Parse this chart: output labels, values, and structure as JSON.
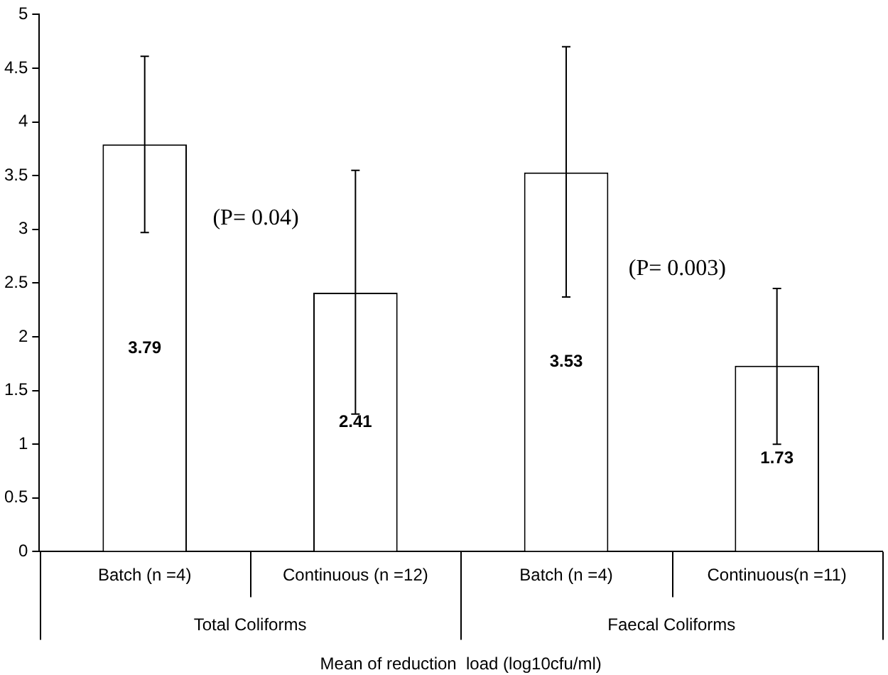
{
  "chart_data": {
    "type": "bar",
    "xlabel": "Mean of reduction  load (log10cfu/ml)",
    "categories": [
      "Batch (n =4)",
      "Continuous (n =12)",
      "Batch (n =4)",
      "Continuous(n =11)"
    ],
    "values": [
      3.79,
      2.41,
      3.53,
      1.73
    ],
    "errors": [
      [
        2.97,
        4.61
      ],
      [
        1.28,
        3.55
      ],
      [
        2.37,
        4.7
      ],
      [
        1.0,
        2.45
      ]
    ],
    "color": "#ffffff",
    "data_labels": true,
    "grid": false,
    "legend": false,
    "ylim": [
      0,
      5
    ],
    "yticks": [
      0,
      0.5,
      1,
      1.5,
      2,
      2.5,
      3,
      3.5,
      4,
      4.5,
      5
    ],
    "annotations": [
      "(P= 0.04)",
      "(P= 0.003)",
      "Total Coliforms",
      "Faecal Coliforms"
    ]
  }
}
